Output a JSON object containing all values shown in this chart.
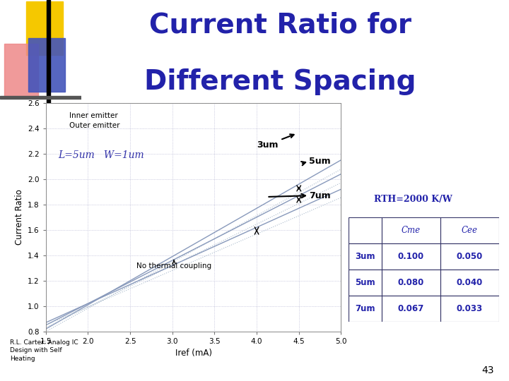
{
  "title_line1": "Current Ratio for",
  "title_line2": "Different Spacing",
  "title_color": "#2222aa",
  "title_fontsize": 28,
  "xlabel": "Iref (mA)",
  "ylabel": "Current Ratio",
  "xlim": [
    1.5,
    5.0
  ],
  "ylim": [
    0.8,
    2.6
  ],
  "xticks": [
    1.5,
    2.0,
    2.5,
    3.0,
    3.5,
    4.0,
    4.5,
    5.0
  ],
  "yticks": [
    0.8,
    1.0,
    1.2,
    1.4,
    1.6,
    1.8,
    2.0,
    2.2,
    2.4,
    2.6
  ],
  "label_params": "L=5um   W=1um",
  "rth_text": "RTH=2000 K/W",
  "bg_color": "#ffffff",
  "slide_number": "43",
  "footer_text": "R.L. Carter: Analog IC\nDesign with Self\nHeating",
  "table_headers": [
    "",
    "Cme",
    "Cee"
  ],
  "table_rows": [
    [
      "3um",
      "0.100",
      "0.050"
    ],
    [
      "5um",
      "0.080",
      "0.040"
    ],
    [
      "7um",
      "0.067",
      "0.033"
    ]
  ],
  "line_color": "#8899bb",
  "line_color_light": "#aabbcc",
  "lines": [
    {
      "y0": 0.82,
      "slope": 0.38,
      "style": "-",
      "lw": 1.0
    },
    {
      "y0": 0.8,
      "slope": 0.365,
      "style": "dotted",
      "lw": 0.8
    },
    {
      "y0": 0.85,
      "slope": 0.34,
      "style": "-",
      "lw": 1.0
    },
    {
      "y0": 0.83,
      "slope": 0.326,
      "style": "dotted",
      "lw": 0.8
    },
    {
      "y0": 0.87,
      "slope": 0.3,
      "style": "-",
      "lw": 1.0
    },
    {
      "y0": 0.85,
      "slope": 0.287,
      "style": "dotted",
      "lw": 0.8
    }
  ]
}
